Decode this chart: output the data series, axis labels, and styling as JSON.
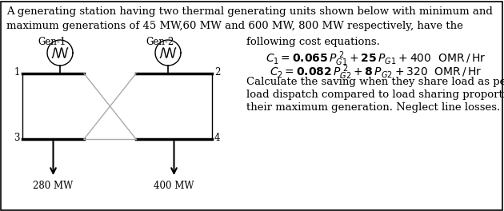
{
  "background_color": "#ffffff",
  "border_color": "#000000",
  "text_line1": "A generating station having two thermal generating units shown below with minimum and",
  "text_line2": "maximum generations of 45 MW,60 MW and 600 MW, 800 MW respectively, have the",
  "right_text1": "following cost equations.",
  "calc_text": "Calculate the saving when they share load as per economic",
  "load_text": "load dispatch compared to load sharing proportional to",
  "max_text": "their maximum generation. Neglect line losses.",
  "gen1_label": "Gen-1",
  "gen2_label": "Gen-2",
  "node1": "1",
  "node2": "2",
  "node3": "3",
  "node4": "4",
  "load1": "280 MW",
  "load2": "400 MW",
  "diagram_color": "#aaaaaa",
  "black": "#000000"
}
